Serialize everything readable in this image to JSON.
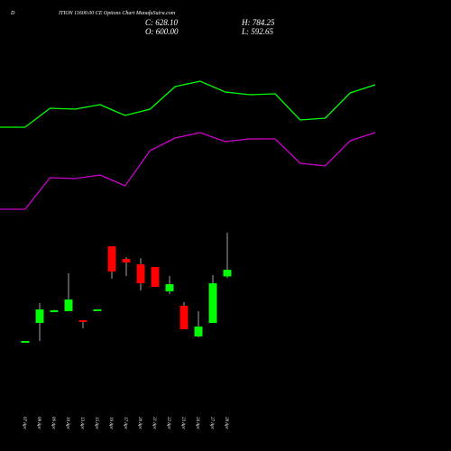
{
  "chart_data": [
    {
      "type": "candlestick",
      "title_prefix": "D",
      "title": "ITION 11600.00 CE Options  Chart MunafaSutra.com",
      "ohlc_labels": [
        "C: 628.10",
        "H: 784.25",
        "O: 600.00",
        "L: 592.65"
      ],
      "categories": [
        "07 Apr",
        "08 Apr",
        "09 Apr",
        "10 Apr",
        "13 Apr",
        "15 Apr",
        "16 Apr",
        "17 Apr",
        "20 Apr",
        "21 Apr",
        "22 Apr",
        "23 Apr",
        "24 Apr",
        "27 Apr",
        "28 Apr"
      ],
      "open": [
        320.3,
        403.9,
        457,
        453.3,
        415.3,
        457,
        726.9,
        673.7,
        650.9,
        639.5,
        536.9,
        476.1,
        346.9,
        403.9,
        600.0
      ],
      "high": [
        327.9,
        487.5,
        459,
        612.9,
        415.3,
        461,
        726.9,
        681.3,
        677.5,
        639.5,
        601.5,
        491.3,
        453.3,
        605.3,
        784.25
      ],
      "low": [
        320.3,
        327.9,
        455,
        453.3,
        381.1,
        457,
        590.1,
        601.5,
        540.7,
        555.9,
        525.5,
        377.3,
        343.1,
        403.9,
        592.65
      ],
      "close": [
        327.9,
        460.9,
        457,
        502.7,
        407.7,
        461,
        620.5,
        658.5,
        571.1,
        555.9,
        567.3,
        377.3,
        388.7,
        571.1,
        628.1
      ],
      "up_color": "#00ff00",
      "down_color": "#ff0000"
    },
    {
      "type": "line",
      "series": [
        {
          "color": "#00ff00",
          "values": [
            159,
            159,
            180,
            179,
            184,
            172,
            179,
            204,
            210,
            198,
            195,
            196,
            167,
            169,
            197,
            206
          ]
        },
        {
          "color": "#cc00cc",
          "values": [
            68,
            68,
            103,
            102,
            106,
            94,
            133,
            147,
            153,
            143,
            146,
            146,
            119,
            116,
            144,
            153
          ]
        }
      ]
    }
  ]
}
